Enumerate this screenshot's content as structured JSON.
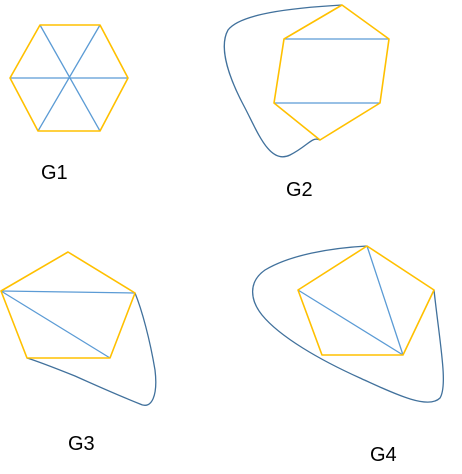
{
  "colors": {
    "polygon_edge": "#FFC000",
    "chord_edge": "#5B9BD5",
    "curve_edge": "#41719C",
    "label": "#000000"
  },
  "graphs": [
    {
      "label": "G1"
    },
    {
      "label": "G2"
    },
    {
      "label": "G3"
    },
    {
      "label": "G4"
    }
  ]
}
